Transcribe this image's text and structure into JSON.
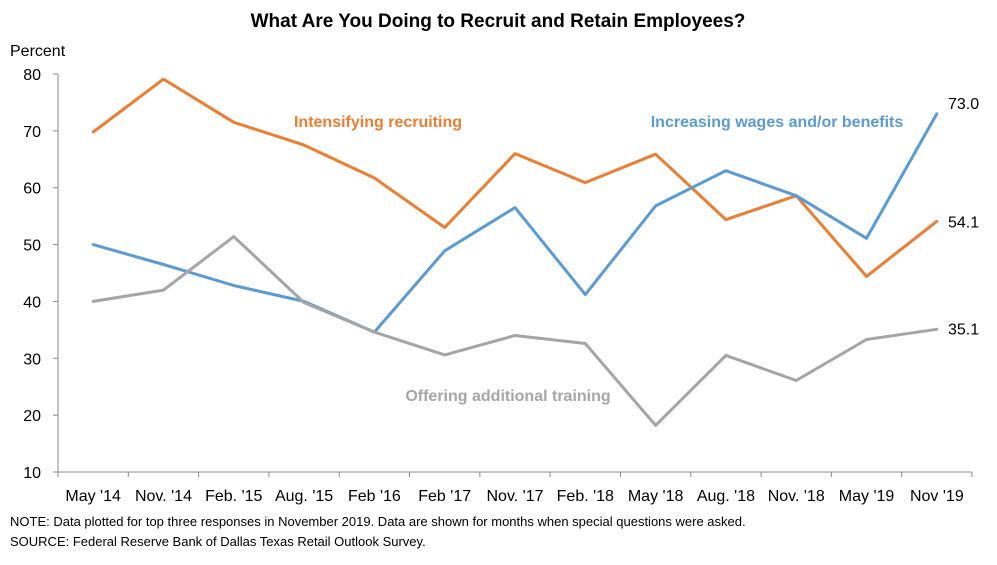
{
  "chart_data": {
    "type": "line",
    "title": "What Are You Doing to Recruit and Retain Employees?",
    "ylabel": "Percent",
    "ylim": [
      10,
      80
    ],
    "yticks": [
      10,
      20,
      30,
      40,
      50,
      60,
      70,
      80
    ],
    "grid": false,
    "categories": [
      "May '14",
      "Nov. '14",
      "Feb. '15",
      "Aug. '15",
      "Feb '16",
      "Feb '17",
      "Nov. '17",
      "Feb. '18",
      "May '18",
      "Aug. '18",
      "Nov. '18",
      "May '19",
      "Nov '19"
    ],
    "series": [
      {
        "name": "Intensifying recruiting",
        "color": "#ED7D31",
        "values": [
          69.8,
          79.1,
          71.5,
          67.5,
          61.7,
          53.0,
          66.0,
          60.9,
          65.9,
          54.4,
          58.6,
          44.4,
          54.1
        ],
        "end_label": "54.1"
      },
      {
        "name": "Increasing wages and/or benefits",
        "color": "#5B9BD5",
        "values": [
          50.0,
          46.5,
          42.8,
          40.0,
          34.6,
          48.9,
          56.5,
          41.2,
          56.8,
          63.0,
          58.6,
          51.1,
          73.0
        ],
        "end_label": "73.0"
      },
      {
        "name": "Offering additional training",
        "color": "#A5A5A5",
        "values": [
          40.0,
          42.0,
          51.4,
          39.8,
          34.6,
          30.6,
          34.0,
          32.6,
          18.2,
          30.5,
          26.1,
          33.3,
          35.1
        ],
        "end_label": "35.1"
      }
    ]
  },
  "notes": {
    "note": "NOTE: Data plotted for top three responses in November 2019. Data are shown for months when special questions were asked.",
    "source": "SOURCE: Federal Reserve Bank of Dallas Texas Retail Outlook Survey."
  }
}
